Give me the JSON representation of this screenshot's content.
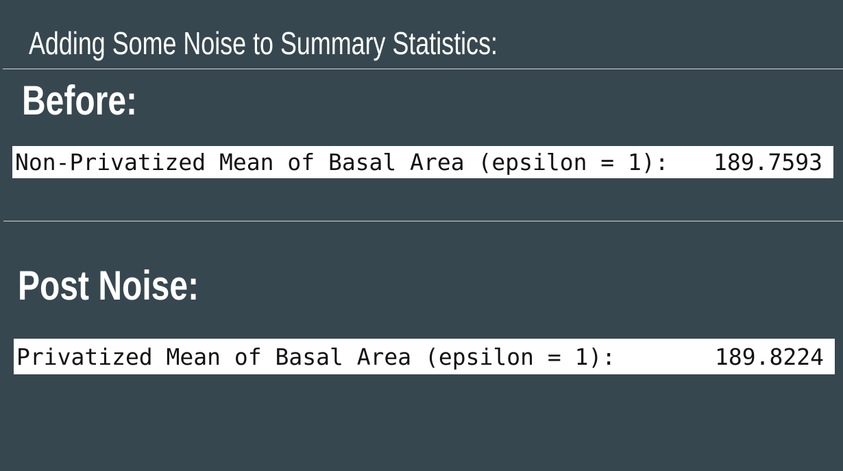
{
  "header": {
    "title": "Adding Some Noise to Summary Statistics:"
  },
  "sections": [
    {
      "heading": "Before:",
      "label": "Non-Privatized Mean of Basal Area (epsilon = 1):",
      "value": "189.7593"
    },
    {
      "heading": "Post Noise:",
      "label": "Privatized Mean of Basal Area (epsilon = 1):",
      "value": "189.8224"
    }
  ]
}
